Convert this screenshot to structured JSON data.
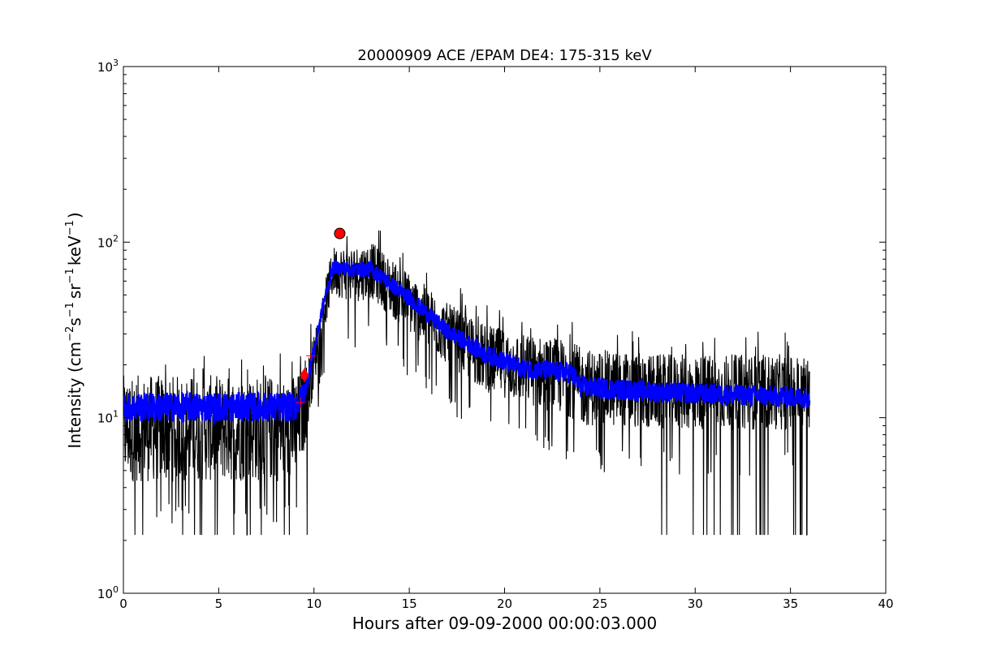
{
  "chart_data": {
    "type": "line",
    "title": "20000909 ACE /EPAM DE4: 175-315 keV",
    "xlabel": "Hours after 09-09-2000 00:00:03.000",
    "ylabel_parts": {
      "prefix": "Intensity (cm",
      "sup1": "−2",
      "mid1": "s",
      "sup2": "−1",
      "mid2": "sr",
      "sup3": "−1",
      "mid3": "keV",
      "sup4": "−1",
      "suffix": ")"
    },
    "xlim": [
      0,
      40
    ],
    "ylim": [
      1,
      1000
    ],
    "yscale": "log",
    "grid": false,
    "x_ticks": [
      0,
      5,
      10,
      15,
      20,
      25,
      30,
      35,
      40
    ],
    "y_ticks": [
      {
        "value": 1,
        "base": "10",
        "exp": "0"
      },
      {
        "value": 10,
        "base": "10",
        "exp": "1"
      },
      {
        "value": 100,
        "base": "10",
        "exp": "2"
      },
      {
        "value": 1000,
        "base": "10",
        "exp": "3"
      }
    ],
    "series": [
      {
        "style": "raw",
        "color": "#000000",
        "x_range": [
          0,
          36
        ],
        "envelope": [
          {
            "x": 0,
            "lo": 4.3,
            "hi": 17.5,
            "mid": 11.5
          },
          {
            "x": 9.0,
            "lo": 4.3,
            "hi": 17.5,
            "mid": 11.5
          },
          {
            "x": 9.5,
            "lo": 6.5,
            "hi": 19,
            "mid": 14
          },
          {
            "x": 10.0,
            "lo": 15,
            "hi": 30,
            "mid": 24
          },
          {
            "x": 10.5,
            "lo": 30,
            "hi": 55,
            "mid": 45
          },
          {
            "x": 11.0,
            "lo": 50,
            "hi": 95,
            "mid": 72
          },
          {
            "x": 12.0,
            "lo": 45,
            "hi": 95,
            "mid": 70
          },
          {
            "x": 13.0,
            "lo": 48,
            "hi": 100,
            "mid": 70
          },
          {
            "x": 15.0,
            "lo": 30,
            "hi": 68,
            "mid": 48
          },
          {
            "x": 17.0,
            "lo": 20,
            "hi": 45,
            "mid": 31
          },
          {
            "x": 19.0,
            "lo": 14,
            "hi": 34,
            "mid": 23
          },
          {
            "x": 21.0,
            "lo": 12,
            "hi": 30,
            "mid": 19
          },
          {
            "x": 23.5,
            "lo": 10,
            "hi": 28,
            "mid": 18
          },
          {
            "x": 24.0,
            "lo": 9,
            "hi": 25,
            "mid": 15
          },
          {
            "x": 28.0,
            "lo": 8.5,
            "hi": 23,
            "mid": 14
          },
          {
            "x": 32.0,
            "lo": 8.5,
            "hi": 23,
            "mid": 13.5
          },
          {
            "x": 36.0,
            "lo": 8.5,
            "hi": 23,
            "mid": 13
          }
        ]
      },
      {
        "style": "smoothed",
        "color": "#0000ff",
        "x_range": [
          0,
          36
        ]
      }
    ],
    "markers": [
      {
        "type": "circle",
        "color": "#ff0000",
        "x": 11.35,
        "y": 112
      },
      {
        "type": "diamond",
        "color": "#ff0000",
        "x": 9.5,
        "y": 17.5
      },
      {
        "type": "plus",
        "color": "#ff0000",
        "x": 9.3,
        "y": 12.2
      },
      {
        "type": "plus",
        "color": "#ff0000",
        "x": 9.85,
        "y": 22.5
      }
    ]
  }
}
